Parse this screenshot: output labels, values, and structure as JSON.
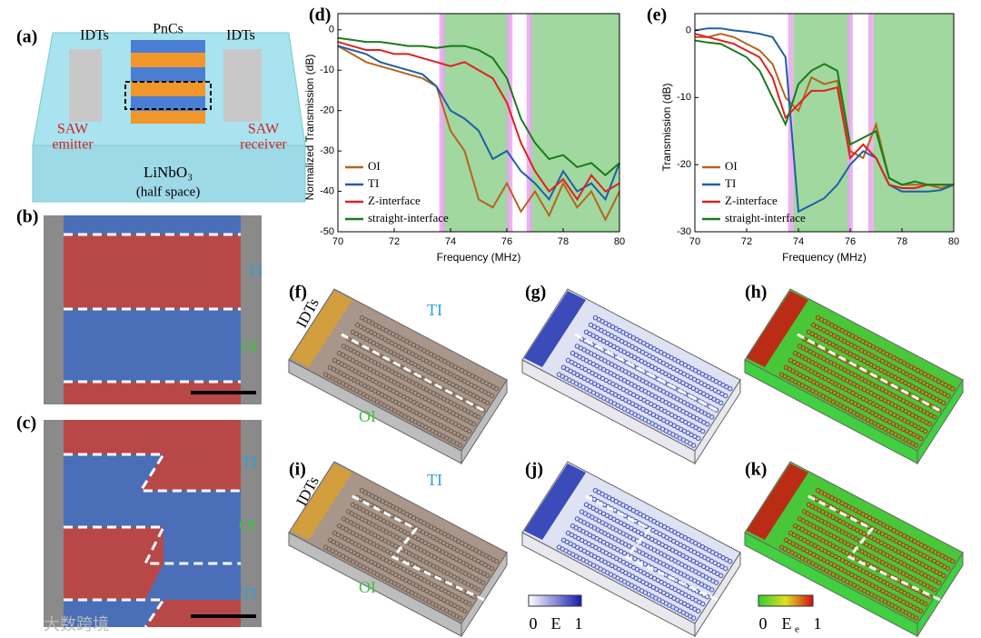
{
  "figure": {
    "panel_labels": {
      "a": "(a)",
      "b": "(b)",
      "c": "(c)",
      "f": "(f)",
      "g": "(g)",
      "h": "(h)",
      "i": "(i)",
      "j": "(j)",
      "k": "(k)"
    },
    "panel_a": {
      "idts_left": "IDTs",
      "pncs": "PnCs",
      "idts_right": "IDTs",
      "saw_left": "SAW",
      "emitter": "emitter",
      "saw_right": "SAW",
      "receiver": "receiver",
      "substrate": "LiNbO₃",
      "half_space": "(half space)"
    },
    "panel_b": [
      "TI",
      "OI"
    ],
    "panel_c": [
      "TI",
      "OI",
      "TI"
    ],
    "panel_f": [
      "IDTs",
      "TI",
      "OI"
    ],
    "panel_i": [
      "IDTs",
      "TI",
      "OI"
    ],
    "colorbar_j": {
      "min": "0",
      "symbol": "E",
      "max": "1"
    },
    "colorbar_k": {
      "min": "0",
      "symbol": "E",
      "subscript": "e",
      "max": "1"
    },
    "watermark": "大数跨境"
  },
  "chart_data": [
    {
      "type": "line",
      "panel_label": "(d)",
      "xlabel": "Frequency (MHz)",
      "ylabel": "Normalized Transmission (dB)",
      "x": [
        70,
        70.5,
        71,
        71.5,
        72,
        72.5,
        73,
        73.5,
        74,
        74.5,
        75,
        75.5,
        76,
        76.5,
        77,
        77.5,
        78,
        78.5,
        79,
        79.5,
        80
      ],
      "series": [
        {
          "name": "OI",
          "color": "#b5651d",
          "values": [
            -4,
            -6,
            -8,
            -9,
            -10,
            -11,
            -12,
            -14,
            -25,
            -30,
            -42,
            -44,
            -38,
            -45,
            -40,
            -46,
            -38,
            -44,
            -40,
            -47,
            -40
          ]
        },
        {
          "name": "TI",
          "color": "#1f5fa8",
          "values": [
            -4,
            -5,
            -6,
            -8,
            -9,
            -10,
            -11,
            -14,
            -20,
            -22,
            -25,
            -32,
            -30,
            -35,
            -38,
            -42,
            -35,
            -40,
            -38,
            -42,
            -33
          ]
        },
        {
          "name": "Z-interface",
          "color": "#e02020",
          "values": [
            -3,
            -4,
            -5,
            -5,
            -6,
            -6,
            -7,
            -8,
            -9,
            -8,
            -10,
            -12,
            -18,
            -28,
            -35,
            -40,
            -37,
            -42,
            -36,
            -40,
            -38
          ]
        },
        {
          "name": "straight-interface",
          "color": "#1a7a1a",
          "values": [
            -2,
            -2.5,
            -3,
            -3,
            -3.5,
            -4,
            -4,
            -4.5,
            -4,
            -4,
            -5,
            -7,
            -12,
            -22,
            -28,
            -32,
            -31,
            -34,
            -33,
            -36,
            -33
          ]
        }
      ],
      "xlim": [
        70,
        80
      ],
      "xticks": [
        70,
        72,
        74,
        76,
        78,
        80
      ],
      "ylim": [
        -50,
        4
      ],
      "yticks": [
        -50,
        -40,
        -30,
        -20,
        -10,
        0
      ],
      "shaded_regions": [
        {
          "from": 73.7,
          "to": 76.1,
          "color": "#8fd18f"
        },
        {
          "from": 76.8,
          "to": 80,
          "color": "#8fd18f"
        },
        {
          "from": 73.6,
          "to": 73.8,
          "color": "#e9a6ee"
        },
        {
          "from": 76.0,
          "to": 76.2,
          "color": "#e9a6ee"
        },
        {
          "from": 76.7,
          "to": 76.9,
          "color": "#e9a6ee"
        }
      ],
      "legend": "lower left"
    },
    {
      "type": "line",
      "panel_label": "(e)",
      "xlabel": "Frequency (MHz)",
      "ylabel": "Transmission (dB)",
      "x": [
        70,
        70.5,
        71,
        71.5,
        72,
        72.5,
        73,
        73.5,
        74,
        74.5,
        75,
        75.5,
        76,
        76.5,
        77,
        77.5,
        78,
        78.5,
        79,
        79.5,
        80
      ],
      "series": [
        {
          "name": "OI",
          "color": "#b5651d",
          "values": [
            -1,
            -1,
            -0.5,
            -1,
            -2,
            -3,
            -5,
            -10,
            -12,
            -7,
            -8,
            -7.5,
            -18,
            -19,
            -14,
            -22,
            -23,
            -23,
            -23,
            -23.5,
            -23
          ]
        },
        {
          "name": "TI",
          "color": "#1f5fa8",
          "values": [
            0,
            0.3,
            0.3,
            0,
            -0.2,
            -0.5,
            -1,
            -4,
            -27,
            -26,
            -25,
            -23,
            -20,
            -18,
            -19,
            -23,
            -24,
            -24,
            -24,
            -23.8,
            -23
          ]
        },
        {
          "name": "Z-interface",
          "color": "#e02020",
          "values": [
            -0.5,
            -1,
            -1.5,
            -2,
            -3,
            -4,
            -7,
            -13,
            -11,
            -9,
            -9,
            -8.5,
            -19,
            -17,
            -19,
            -23,
            -23.5,
            -23.5,
            -23,
            -23,
            -23
          ]
        },
        {
          "name": "straight-interface",
          "color": "#1a7a1a",
          "values": [
            -1.5,
            -1.8,
            -2,
            -3,
            -4,
            -6,
            -10,
            -14,
            -8,
            -6,
            -5,
            -6,
            -17,
            -16,
            -15,
            -22,
            -23,
            -22.5,
            -23,
            -23,
            -23
          ]
        }
      ],
      "xlim": [
        70,
        80
      ],
      "xticks": [
        70,
        72,
        74,
        76,
        78,
        80
      ],
      "ylim": [
        -30,
        2.5
      ],
      "yticks": [
        -30,
        -20,
        -10,
        0
      ],
      "shaded_regions": [
        {
          "from": 73.8,
          "to": 76.0,
          "color": "#8fd18f"
        },
        {
          "from": 76.9,
          "to": 80,
          "color": "#8fd18f"
        },
        {
          "from": 73.6,
          "to": 73.8,
          "color": "#e9a6ee"
        },
        {
          "from": 75.9,
          "to": 76.1,
          "color": "#e9a6ee"
        },
        {
          "from": 76.7,
          "to": 76.9,
          "color": "#e9a6ee"
        }
      ],
      "legend": "lower left"
    }
  ]
}
